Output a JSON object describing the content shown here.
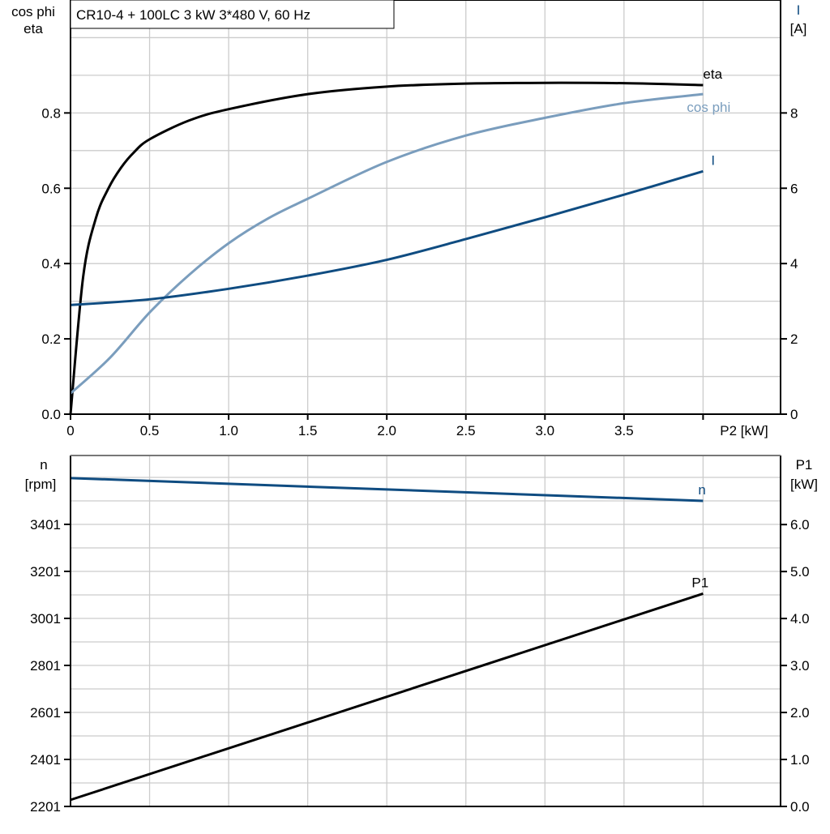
{
  "title": "CR10-4 + 100LC   3 kW   3*480 V, 60 Hz",
  "colors": {
    "eta": "#000000",
    "cos_phi": "#7a9dbd",
    "I": "#0f4c81",
    "n": "#0f4c81",
    "P1": "#000000",
    "grid": "#cccccc"
  },
  "chart_data": [
    {
      "type": "line",
      "xlabel": "P2 [kW]",
      "x_ticks": [
        "0",
        "0.5",
        "1.0",
        "1.5",
        "2.0",
        "2.5",
        "3.0",
        "3.5"
      ],
      "xlim": [
        0,
        4.49
      ],
      "ylabel_left": [
        "cos phi",
        "eta"
      ],
      "ylim_left": [
        0,
        1.1
      ],
      "y_ticks_left": [
        "0.0",
        "0.2",
        "0.4",
        "0.6",
        "0.8"
      ],
      "ylabel_right": [
        "I",
        "[A]"
      ],
      "ylim_right": [
        0,
        11
      ],
      "y_ticks_right": [
        "0",
        "2",
        "4",
        "6",
        "8"
      ],
      "grid": true,
      "series": [
        {
          "name": "eta",
          "axis": "left",
          "x": [
            0,
            0.08,
            0.16,
            0.24,
            0.32,
            0.4,
            0.5,
            0.75,
            1.0,
            1.5,
            2.0,
            2.5,
            3.0,
            3.5,
            4.0
          ],
          "y": [
            0,
            0.365,
            0.52,
            0.6,
            0.655,
            0.695,
            0.73,
            0.78,
            0.81,
            0.85,
            0.87,
            0.878,
            0.88,
            0.879,
            0.874
          ]
        },
        {
          "name": "cos phi",
          "axis": "left",
          "x": [
            0,
            0.25,
            0.5,
            0.75,
            1.0,
            1.25,
            1.5,
            2.0,
            2.5,
            3.0,
            3.5,
            4.0
          ],
          "y": [
            0.055,
            0.15,
            0.27,
            0.37,
            0.454,
            0.52,
            0.572,
            0.67,
            0.74,
            0.787,
            0.826,
            0.85
          ]
        },
        {
          "name": "I",
          "axis": "right",
          "x": [
            0,
            0.5,
            1.0,
            1.5,
            2.0,
            2.5,
            3.0,
            3.5,
            4.0
          ],
          "y": [
            2.9,
            3.05,
            3.33,
            3.68,
            4.1,
            4.65,
            5.23,
            5.83,
            6.45
          ]
        }
      ]
    },
    {
      "type": "line",
      "xlim": [
        0,
        4.49
      ],
      "ylabel_left": [
        "n",
        "[rpm]"
      ],
      "ylim_left": [
        2201,
        3694
      ],
      "y_ticks_left": [
        "2201",
        "2401",
        "2601",
        "2801",
        "3001",
        "3201",
        "3401"
      ],
      "ylabel_right": [
        "P1",
        "[kW]"
      ],
      "ylim_right": [
        0,
        7.47
      ],
      "y_ticks_right": [
        "0.0",
        "1.0",
        "2.0",
        "3.0",
        "4.0",
        "5.0",
        "6.0"
      ],
      "grid": true,
      "series": [
        {
          "name": "n",
          "axis": "left",
          "x": [
            0,
            4.0
          ],
          "y": [
            3598,
            3501
          ]
        },
        {
          "name": "P1",
          "axis": "right",
          "x": [
            0,
            4.0
          ],
          "y": [
            0.14,
            4.53
          ]
        }
      ]
    }
  ]
}
